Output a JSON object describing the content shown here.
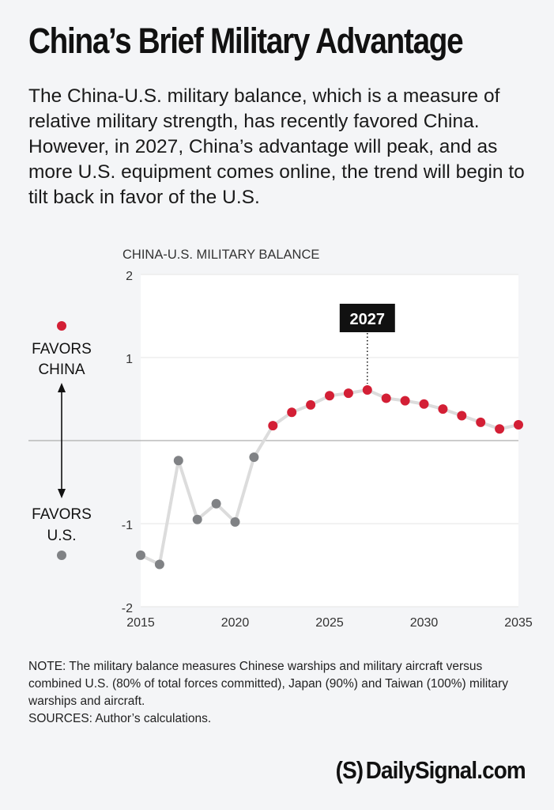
{
  "title": "China’s Brief Military Advantage",
  "description": "The China-U.S. military balance, which is a measure of relative military strength, has recently favored China. However, in 2027, China’s advantage will peak, and as more U.S. equipment comes online, the trend will begin to tilt back in favor of the U.S.",
  "note": "NOTE: The military balance measures Chinese warships and military aircraft versus combined U.S. (80% of total forces committed), Japan (90%) and Taiwan (100%) military warships and aircraft.",
  "sources": "SOURCES: Author’s calculations.",
  "brand": {
    "mark": "(S)",
    "name": "DailySignal.com"
  },
  "colors": {
    "china": "#d31f35",
    "us": "#808285",
    "line": "#dcdcdc",
    "background": "#f4f5f7",
    "plot": "#ffffff"
  },
  "chart_data": {
    "type": "line",
    "title": "CHINA-U.S. MILITARY BALANCE",
    "xlim": [
      2015,
      2035
    ],
    "ylim": [
      -2,
      2
    ],
    "x_ticks": [
      "2015",
      "2020",
      "2025",
      "2030",
      "2035"
    ],
    "y_ticks": [
      "2",
      "1",
      "-1",
      "-2"
    ],
    "grid": true,
    "zero_line": true,
    "legend": {
      "placement": "left",
      "china_label_1": "FAVORS",
      "china_label_2": "CHINA",
      "us_label_1": "FAVORS",
      "us_label_2": "U.S."
    },
    "annotation": {
      "x": 2027,
      "label": "2027"
    },
    "series": [
      {
        "x": [
          2015,
          2016,
          2017,
          2018,
          2019,
          2020,
          2021,
          2022,
          2023,
          2024,
          2025,
          2026,
          2027,
          2028,
          2029,
          2030,
          2031,
          2032,
          2033,
          2034,
          2035
        ],
        "values": [
          -1.38,
          -1.49,
          -0.24,
          -0.95,
          -0.76,
          -0.98,
          -0.2,
          0.18,
          0.34,
          0.43,
          0.54,
          0.57,
          0.61,
          0.51,
          0.48,
          0.44,
          0.38,
          0.3,
          0.22,
          0.14,
          0.19
        ]
      }
    ]
  }
}
